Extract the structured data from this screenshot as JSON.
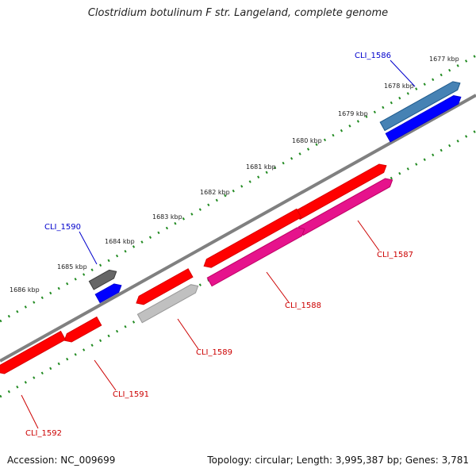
{
  "title": "Clostridium botulinum F str. Langeland, complete genome",
  "footer": {
    "accession": "Accession: NC_009699",
    "summary": "Topology: circular; Length: 3,995,387 bp; Genes: 3,781"
  },
  "colors": {
    "forward_gene": "#ff0000",
    "reverse_gene": "#e6138c",
    "highlight_gene": "#0000ff",
    "steel_gene": "#4682b4",
    "gray_gene": "#666666",
    "light_gray_gene": "#c0c0c0",
    "backbone": "#808080",
    "tick": "#228b22",
    "label_forward": "#0000cc",
    "label_reverse": "#cc0000"
  },
  "tick_labels": [
    "1677 kbp",
    "1678 kbp",
    "1679 kbp",
    "1680 kbp",
    "1681 kbp",
    "1682 kbp",
    "1683 kbp",
    "1684 kbp",
    "1685 kbp",
    "1686 kbp"
  ],
  "genes": [
    {
      "id": "CLI_1586",
      "color": "steel_gene",
      "label_color": "label_forward"
    },
    {
      "id": "CLI_1586b",
      "color": "highlight_gene",
      "label_color": ""
    },
    {
      "id": "CLI_1587",
      "color": "forward_gene",
      "label_color": "label_reverse"
    },
    {
      "id": "CLI_1587b",
      "color": "reverse_gene",
      "label_color": ""
    },
    {
      "id": "CLI_1588",
      "color": "forward_gene",
      "label_color": "label_reverse"
    },
    {
      "id": "CLI_1588b",
      "color": "reverse_gene",
      "label_color": ""
    },
    {
      "id": "CLI_1589",
      "color": "forward_gene",
      "label_color": "label_reverse"
    },
    {
      "id": "CLI_1589b",
      "color": "light_gray_gene",
      "label_color": ""
    },
    {
      "id": "CLI_1590",
      "color": "gray_gene",
      "label_color": "label_forward"
    },
    {
      "id": "CLI_1590b",
      "color": "highlight_gene",
      "label_color": ""
    },
    {
      "id": "CLI_1591",
      "color": "forward_gene",
      "label_color": "label_reverse"
    },
    {
      "id": "CLI_1592",
      "color": "forward_gene",
      "label_color": "label_reverse"
    }
  ],
  "gene_labels": [
    "CLI_1586",
    "CLI_1587",
    "CLI_1588",
    "CLI_1589",
    "CLI_1590",
    "CLI_1591",
    "CLI_1592"
  ]
}
